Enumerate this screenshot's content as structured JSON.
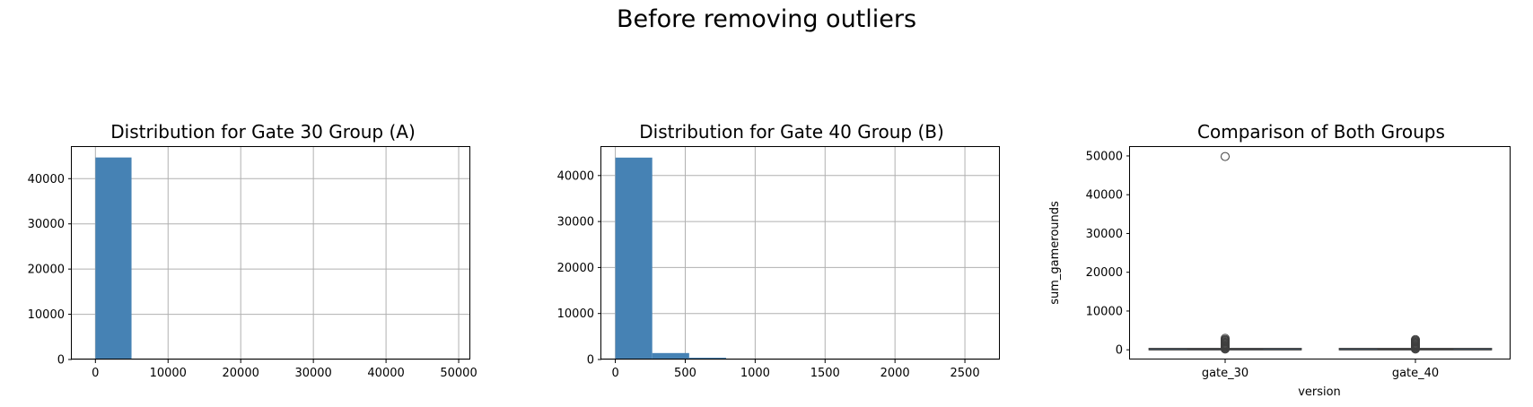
{
  "suptitle": "Before removing outliers",
  "chart_data": [
    {
      "type": "bar",
      "title": "Distribution for Gate 30 Group (A)",
      "xlabel": "",
      "ylabel": "",
      "xlim": [
        -3250,
        51600
      ],
      "ylim": [
        0,
        47000
      ],
      "xticks": [
        0,
        10000,
        20000,
        30000,
        40000,
        50000
      ],
      "yticks": [
        0,
        10000,
        20000,
        30000,
        40000
      ],
      "grid": true,
      "color": "#4682b4",
      "bins": [
        {
          "x0": 0,
          "x1": 4970,
          "count": 44690
        },
        {
          "x0": 4970,
          "x1": 9940,
          "count": 0
        },
        {
          "x0": 9940,
          "x1": 14910,
          "count": 0
        },
        {
          "x0": 14910,
          "x1": 19880,
          "count": 0
        },
        {
          "x0": 19880,
          "x1": 24850,
          "count": 0
        },
        {
          "x0": 24850,
          "x1": 29820,
          "count": 0
        },
        {
          "x0": 29820,
          "x1": 34790,
          "count": 0
        },
        {
          "x0": 34790,
          "x1": 39760,
          "count": 0
        },
        {
          "x0": 39760,
          "x1": 44730,
          "count": 0
        },
        {
          "x0": 44730,
          "x1": 49700,
          "count": 1
        }
      ]
    },
    {
      "type": "bar",
      "title": "Distribution for Gate 40 Group (B)",
      "xlabel": "",
      "ylabel": "",
      "xlim": [
        -100,
        2750
      ],
      "ylim": [
        0,
        46200
      ],
      "xticks": [
        0,
        500,
        1000,
        1500,
        2000,
        2500
      ],
      "yticks": [
        0,
        10000,
        20000,
        30000,
        40000
      ],
      "grid": true,
      "color": "#4682b4",
      "bins": [
        {
          "x0": 0,
          "x1": 264,
          "count": 43900
        },
        {
          "x0": 264,
          "x1": 528,
          "count": 1400
        },
        {
          "x0": 528,
          "x1": 792,
          "count": 380
        },
        {
          "x0": 792,
          "x1": 1056,
          "count": 110
        },
        {
          "x0": 1056,
          "x1": 1320,
          "count": 40
        },
        {
          "x0": 1320,
          "x1": 1584,
          "count": 15
        },
        {
          "x0": 1584,
          "x1": 1848,
          "count": 8
        },
        {
          "x0": 1848,
          "x1": 2112,
          "count": 4
        },
        {
          "x0": 2112,
          "x1": 2376,
          "count": 2
        },
        {
          "x0": 2376,
          "x1": 2640,
          "count": 1
        }
      ]
    },
    {
      "type": "box",
      "title": "Comparison of Both Groups",
      "xlabel": "version",
      "ylabel": "sum_gamerounds",
      "ylim": [
        -2500,
        52300
      ],
      "yticks": [
        0,
        10000,
        20000,
        30000,
        40000,
        50000
      ],
      "grid": false,
      "categories": [
        "gate_30",
        "gate_40"
      ],
      "boxes": [
        {
          "name": "gate_30",
          "q1": 5,
          "median": 17,
          "q3": 50,
          "whisker_low": 0,
          "whisker_high": 117,
          "outliers": [
            49854,
            2961,
            2640,
            2438,
            2251,
            2015,
            1800,
            1600,
            1400,
            1200,
            1000,
            800,
            600,
            400,
            200
          ]
        },
        {
          "name": "gate_40",
          "q1": 5,
          "median": 16,
          "q3": 52,
          "whisker_low": 0,
          "whisker_high": 122,
          "outliers": [
            2640,
            2400,
            2200,
            2000,
            1800,
            1600,
            1400,
            1200,
            1000,
            800,
            600,
            400,
            200
          ]
        }
      ]
    }
  ]
}
